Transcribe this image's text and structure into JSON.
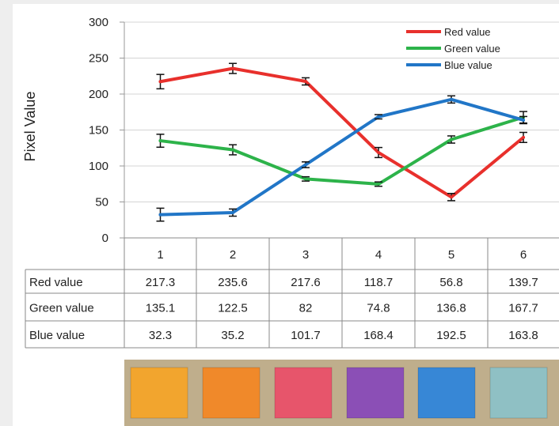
{
  "chart_data": {
    "type": "line",
    "categories": [
      "1",
      "2",
      "3",
      "4",
      "5",
      "6"
    ],
    "ylabel": "Pixel Value",
    "ylim": [
      0,
      300
    ],
    "yticks": [
      0,
      50,
      100,
      150,
      200,
      250,
      300
    ],
    "grid": true,
    "legend_position": "top-right",
    "error_bars": true,
    "series": [
      {
        "name": "Red value",
        "color": "#e8302c",
        "values": [
          217.3,
          235.6,
          217.6,
          118.7,
          56.8,
          139.7
        ],
        "errors": [
          10,
          7,
          5,
          7,
          5,
          7
        ]
      },
      {
        "name": "Green value",
        "color": "#2db34a",
        "values": [
          135.1,
          122.5,
          82,
          74.8,
          136.8,
          167.7
        ],
        "errors": [
          9,
          7,
          3,
          3,
          5,
          8
        ]
      },
      {
        "name": "Blue value",
        "color": "#2176c7",
        "values": [
          32.3,
          35.2,
          101.7,
          168.4,
          192.5,
          163.8
        ],
        "errors": [
          9,
          5,
          4,
          3,
          5,
          5
        ]
      }
    ],
    "table": {
      "header": [
        "1",
        "2",
        "3",
        "4",
        "5",
        "6"
      ],
      "rows": [
        {
          "label": "Red value",
          "cells": [
            "217.3",
            "235.6",
            "217.6",
            "118.7",
            "56.8",
            "139.7"
          ]
        },
        {
          "label": "Green value",
          "cells": [
            "135.1",
            "122.5",
            "82",
            "74.8",
            "136.8",
            "167.7"
          ]
        },
        {
          "label": "Blue value",
          "cells": [
            "32.3",
            "35.2",
            "101.7",
            "168.4",
            "192.5",
            "163.8"
          ]
        }
      ]
    }
  },
  "swatches": {
    "colors": [
      "#f2a52e",
      "#f0892a",
      "#e7556b",
      "#8b4fb6",
      "#3787d6",
      "#8fc0c4"
    ],
    "background": "#bfae8c"
  }
}
